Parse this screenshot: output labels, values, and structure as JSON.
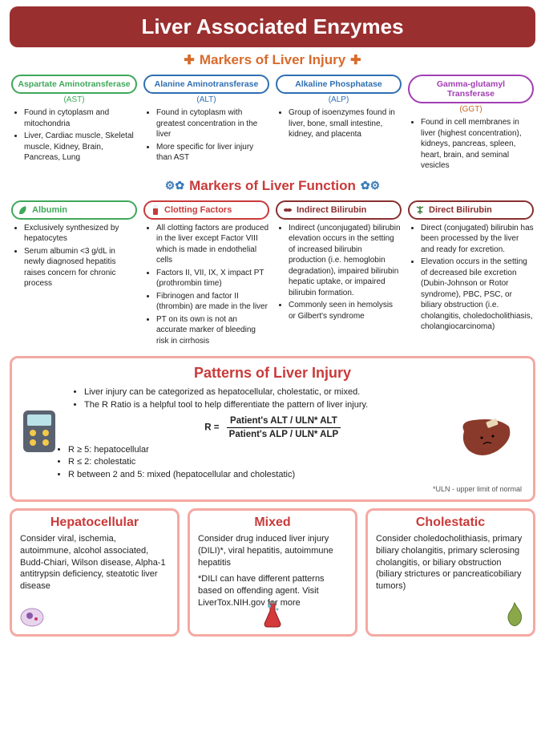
{
  "title": "Liver Associated Enzymes",
  "sections": {
    "injury": {
      "heading": "Markers of Liver Injury",
      "heading_color": "#d96a2b",
      "markers": [
        {
          "name": "Aspartate Aminotransferase",
          "abbr": "(AST)",
          "color": "#3fa85a",
          "abbr_color": "#3fa85a",
          "bullets": [
            "Found in cytoplasm and mitochondria",
            "Liver, Cardiac muscle, Skeletal muscle, Kidney, Brain, Pancreas, Lung"
          ]
        },
        {
          "name": "Alanine Aminotransferase",
          "abbr": "(ALT)",
          "color": "#2f6fb3",
          "abbr_color": "#2f6fb3",
          "bullets": [
            "Found in cytoplasm with greatest concentration in the liver",
            "More specific for liver injury than AST"
          ]
        },
        {
          "name": "Alkaline Phosphatase",
          "abbr": "(ALP)",
          "color": "#2f6fb3",
          "abbr_color": "#2f6fb3",
          "bullets": [
            "Group of isoenzymes found in liver, bone, small intestine, kidney, and placenta"
          ]
        },
        {
          "name": "Gamma-glutamyl Transferase",
          "abbr": "(GGT)",
          "color": "#a23fb3",
          "abbr_color": "#c46a2b",
          "bullets": [
            "Found in cell membranes in liver (highest concentration), kidneys, pancreas, spleen, heart, brain, and seminal vesicles"
          ]
        }
      ]
    },
    "function": {
      "heading": "Markers of Liver Function",
      "heading_color": "#c93a3a",
      "markers": [
        {
          "name": "Albumin",
          "color": "#3fa85a",
          "icon": "leaf",
          "bullets": [
            "Exclusively synthesized by hepatocytes",
            "Serum albumin <3 g/dL in newly diagnosed hepatitis raises concern for chronic process"
          ]
        },
        {
          "name": "Clotting Factors",
          "color": "#c93a3a",
          "icon": "tube",
          "bullets": [
            "All clotting factors are produced in the liver except Factor VIII which is made in endothelial cells",
            "Factors II, VII, IX, X impact PT (prothrombin time)",
            "Fibrinogen and factor II (thrombin) are made in the liver",
            "PT on its own is not an accurate marker of bleeding risk in cirrhosis"
          ]
        },
        {
          "name": "Indirect Bilirubin",
          "color": "#8a2f2f",
          "icon": "pill",
          "bullets": [
            "Indirect (unconjugated) bilirubin elevation occurs in the setting of increased bilirubin production (i.e. hemoglobin degradation), impaired bilirubin hepatic uptake, or impaired bilirubin formation.",
            "Commonly seen in hemolysis or Gilbert's syndrome"
          ]
        },
        {
          "name": "Direct Bilirubin",
          "color": "#8a2f2f",
          "icon": "tree",
          "bullets": [
            "Direct (conjugated) bilirubin has been processed by the liver and ready for excretion.",
            "Elevation occurs in the setting of decreased bile excretion (Dubin-Johnson or Rotor syndrome), PBC, PSC, or biliary obstruction (i.e. cholangitis, choledocholithiasis, cholangiocarcinoma)"
          ]
        }
      ]
    }
  },
  "patterns": {
    "title": "Patterns of Liver Injury",
    "title_color": "#c93a3a",
    "intro": [
      "Liver injury can be categorized as hepatocellular, cholestatic, or mixed.",
      "The R Ratio is a helpful tool to help differentiate the pattern of liver injury."
    ],
    "formula_label": "R  =",
    "formula_num": "Patient's ALT / ULN* ALT",
    "formula_den": "Patient's ALP / ULN* ALP",
    "thresholds": [
      "R ≥ 5: hepatocellular",
      "R ≤ 2: cholestatic",
      "R between 2 and 5: mixed (hepatocellular and cholestatic)"
    ],
    "footnote": "*ULN - upper limit of normal"
  },
  "categories": [
    {
      "title": "Hepatocellular",
      "color": "#c93a3a",
      "body": "Consider viral, ischemia, autoimmune, alcohol associated, Budd-Chiari, Wilson disease, Alpha-1 antitrypsin deficiency, steatotic liver disease",
      "icon": "cell"
    },
    {
      "title": "Mixed",
      "color": "#c93a3a",
      "body": "Consider drug induced liver injury (DILI)*, viral hepatitis, autoimmune hepatitis",
      "note": "*DILI can have different patterns based on offending agent. Visit LiverTox.NIH.gov for more",
      "icon": "flask"
    },
    {
      "title": "Cholestatic",
      "color": "#c93a3a",
      "body": "Consider choledocholithiasis, primary biliary cholangitis, primary sclerosing cholangitis, or biliary obstruction (biliary strictures or pancreaticobiliary tumors)",
      "icon": "gallbladder"
    }
  ],
  "colors": {
    "panel_border": "#f4a9a3",
    "title_bg": "#9a2f30"
  }
}
